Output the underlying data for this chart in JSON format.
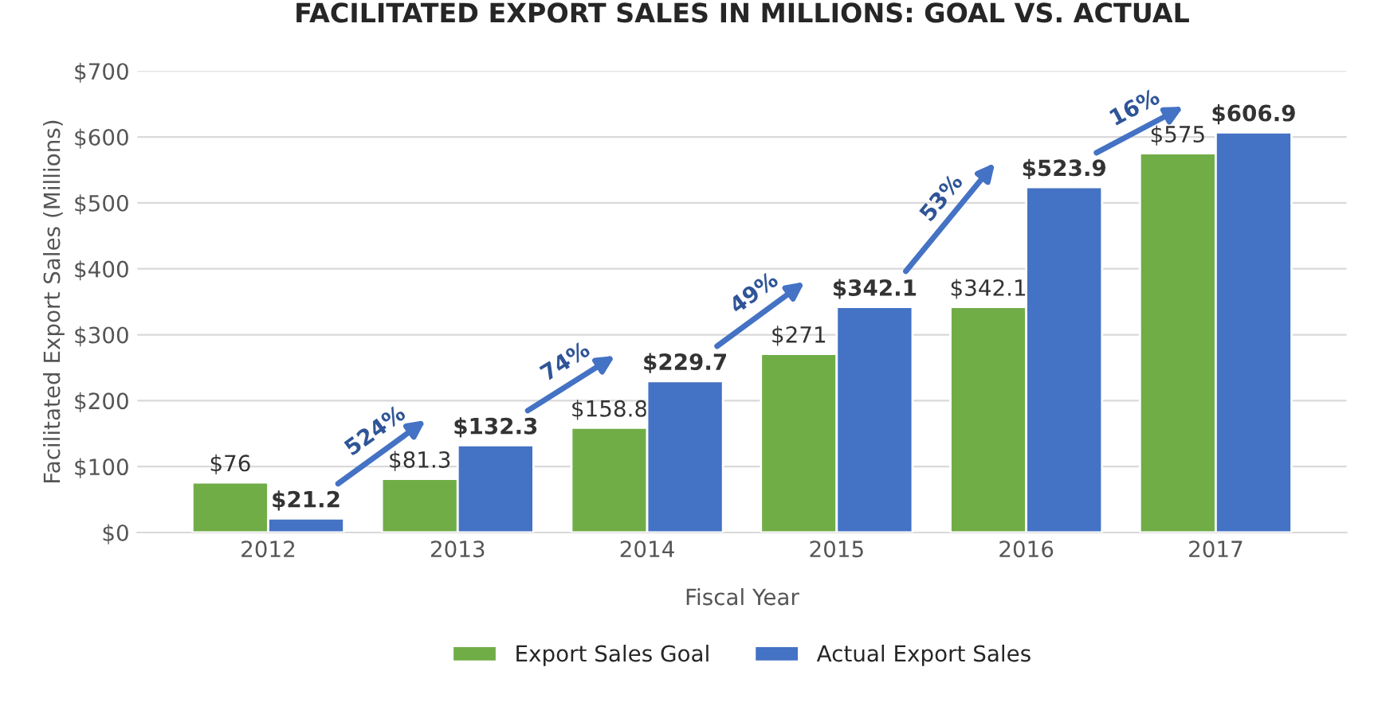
{
  "chart_data": {
    "type": "bar",
    "title": "FACILITATED EXPORT SALES IN MILLIONS: GOAL VS. ACTUAL",
    "xlabel": "Fiscal Year",
    "ylabel": "Facilitated Export Sales (Millions)",
    "categories": [
      "2012",
      "2013",
      "2014",
      "2015",
      "2016",
      "2017"
    ],
    "series": [
      {
        "name": "Export Sales Goal",
        "color": "#70ad47",
        "values": [
          76,
          81.3,
          158.8,
          271,
          342.1,
          575
        ],
        "value_labels": [
          "$76",
          "$81.3",
          "$158.8",
          "$271",
          "$342.1",
          "$575"
        ]
      },
      {
        "name": "Actual Export Sales",
        "color": "#4472c4",
        "values": [
          21.2,
          132.3,
          229.7,
          342.1,
          523.9,
          606.9
        ],
        "value_labels": [
          "$21.2",
          "$132.3",
          "$229.7",
          "$342.1",
          "$523.9",
          "$606.9"
        ]
      }
    ],
    "ylim": [
      0,
      700
    ],
    "yticks": [
      {
        "value": 0,
        "label": "$0"
      },
      {
        "value": 100,
        "label": "$100"
      },
      {
        "value": 200,
        "label": "$200"
      },
      {
        "value": 300,
        "label": "$300"
      },
      {
        "value": 400,
        "label": "$400"
      },
      {
        "value": 500,
        "label": "$500"
      },
      {
        "value": 600,
        "label": "$600"
      },
      {
        "value": 700,
        "label": "$700"
      }
    ],
    "annotations": [
      "524%",
      "74%",
      "49%",
      "53%",
      "16%"
    ],
    "grid": "y",
    "legend": "bottom"
  }
}
